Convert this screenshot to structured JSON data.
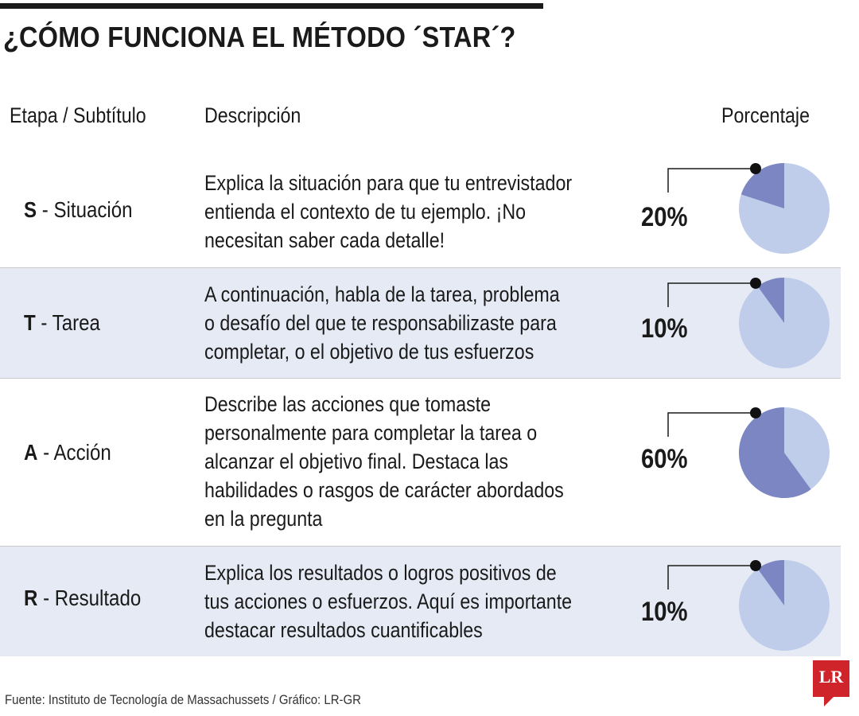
{
  "title": "¿CÓMO FUNCIONA EL MÉTODO ´STAR´?",
  "headers": {
    "stage": "Etapa / Subtítulo",
    "description": "Descripción",
    "percentage": "Porcentaje"
  },
  "colors": {
    "slice": "#7b86c2",
    "rest": "#bfcdeb",
    "row_shade": "#e6eaf4"
  },
  "chart_data": {
    "type": "pie",
    "title": "¿CÓMO FUNCIONA EL MÉTODO ´STAR´?",
    "categories": [
      "S - Situación",
      "T - Tarea",
      "A - Acción",
      "R - Resultado"
    ],
    "values": [
      20,
      10,
      60,
      10
    ],
    "unit": "%"
  },
  "rows": [
    {
      "letter": "S",
      "name": "- Situación",
      "description": "Explica la situación para que tu entrevistador entienda el contexto de tu ejemplo. ¡No necesitan saber cada detalle!",
      "percent_label": "20%",
      "value": 20
    },
    {
      "letter": "T",
      "name": "- Tarea",
      "description": "A continuación, habla de la tarea, problema o desafío del que te responsabilizaste para completar, o el objetivo de tus esfuerzos",
      "percent_label": "10%",
      "value": 10
    },
    {
      "letter": "A",
      "name": "- Acción",
      "description": "Describe las acciones que tomaste personalmente para completar la tarea o alcanzar el objetivo final. Destaca las habilidades o rasgos de carácter abordados en la pregunta",
      "percent_label": "60%",
      "value": 60
    },
    {
      "letter": "R",
      "name": "- Resultado",
      "description": "Explica los resultados o logros positivos de tus acciones o esfuerzos. Aquí es importante destacar resultados cuantificables",
      "percent_label": "10%",
      "value": 10
    }
  ],
  "source": "Fuente: Instituto de Tecnología de Massachussets / Gráfico: LR-GR",
  "logo": {
    "text": "LR",
    "color": "#d0242b"
  }
}
